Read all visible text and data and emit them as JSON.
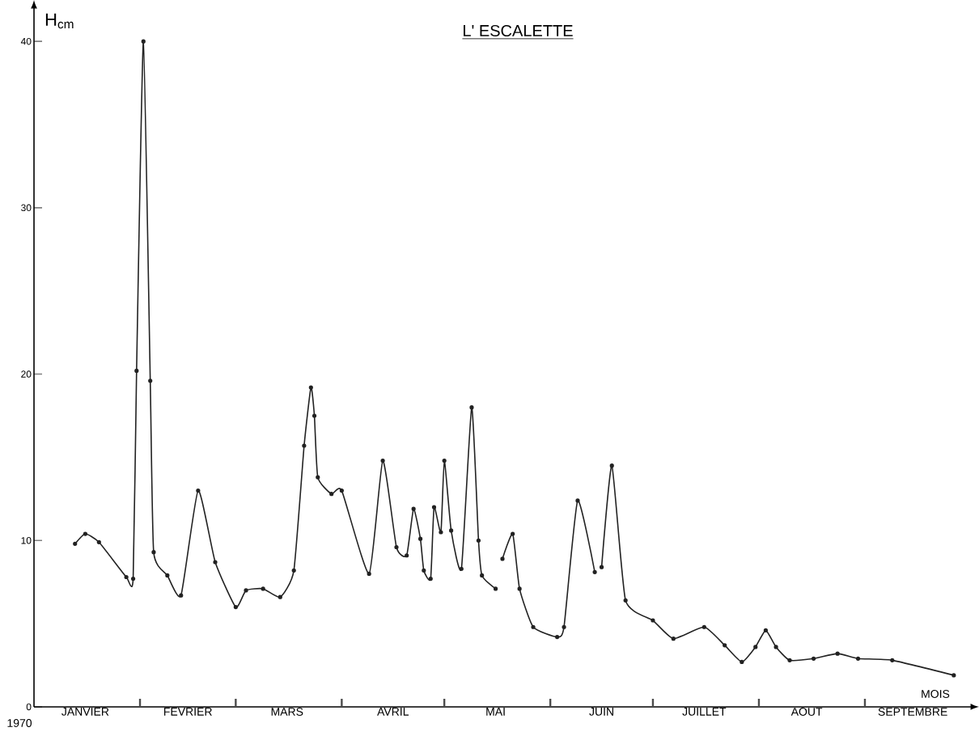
{
  "chart_data": {
    "type": "line",
    "title": "L' ESCALETTE",
    "ylabel": "H$_{cm}$",
    "xlabel": "MOIS",
    "annotations": [
      "1970"
    ],
    "x": [
      "1970-01-13",
      "1970-01-16",
      "1970-01-20",
      "1970-01-28",
      "1970-01-30",
      "1970-01-31",
      "1970-02-02",
      "1970-02-04",
      "1970-02-05",
      "1970-02-09",
      "1970-02-13",
      "1970-02-18",
      "1970-02-23",
      "1970-03-01",
      "1970-03-04",
      "1970-03-09",
      "1970-03-14",
      "1970-03-18",
      "1970-03-21",
      "1970-03-23",
      "1970-03-24",
      "1970-03-25",
      "1970-03-29",
      "1970-04-01",
      "1970-04-09",
      "1970-04-13",
      "1970-04-17",
      "1970-04-20",
      "1970-04-22",
      "1970-04-24",
      "1970-04-25",
      "1970-04-27",
      "1970-04-28",
      "1970-04-30",
      "1970-05-01",
      "1970-05-03",
      "1970-05-06",
      "1970-05-09",
      "1970-05-11",
      "1970-05-12",
      "1970-05-16",
      "1970-05-17",
      "1970-05-18",
      "1970-05-21",
      "1970-05-23",
      "1970-05-27",
      "1970-06-03",
      "1970-06-05",
      "1970-06-09",
      "1970-06-14",
      "1970-06-15",
      "1970-06-16",
      "1970-06-19",
      "1970-06-23",
      "1970-07-01",
      "1970-07-07",
      "1970-07-16",
      "1970-07-22",
      "1970-07-27",
      "1970-07-31",
      "1970-08-03",
      "1970-08-06",
      "1970-08-10",
      "1970-08-17",
      "1970-08-24",
      "1970-08-30",
      "1970-09-09",
      "1970-09-27"
    ],
    "values": [
      9.8,
      10.4,
      9.9,
      7.8,
      7.7,
      20.2,
      40.0,
      19.6,
      9.3,
      7.9,
      6.7,
      13.0,
      8.7,
      6.0,
      7.0,
      7.1,
      6.6,
      8.2,
      15.7,
      19.2,
      17.5,
      13.8,
      12.8,
      13.0,
      8.0,
      14.8,
      9.6,
      9.1,
      11.9,
      10.1,
      8.2,
      7.7,
      12.0,
      10.5,
      14.8,
      10.6,
      8.3,
      18.0,
      10.0,
      7.9,
      7.1,
      null,
      8.9,
      10.4,
      7.1,
      4.8,
      4.2,
      4.8,
      12.4,
      8.1,
      null,
      8.4,
      14.5,
      6.4,
      5.2,
      4.1,
      4.8,
      3.7,
      2.7,
      3.6,
      4.6,
      3.6,
      2.8,
      2.9,
      3.2,
      2.9,
      2.8,
      1.9
    ],
    "color": "#222222",
    "marker": "circle",
    "line_style": "solid",
    "xlim": [
      "1970-01-01",
      "1970-10-02"
    ],
    "ylim": [
      0,
      42
    ],
    "xticks": [
      {
        "value": "1970-01-16",
        "label": "JANVIER"
      },
      {
        "value": "1970-02-01",
        "label": null
      },
      {
        "value": "1970-02-15",
        "label": "FEVRIER"
      },
      {
        "value": "1970-03-01",
        "label": null
      },
      {
        "value": "1970-03-16",
        "label": "MARS"
      },
      {
        "value": "1970-04-01",
        "label": null
      },
      {
        "value": "1970-04-16",
        "label": "AVRIL"
      },
      {
        "value": "1970-05-01",
        "label": null
      },
      {
        "value": "1970-05-16",
        "label": "MAI"
      },
      {
        "value": "1970-06-01",
        "label": null
      },
      {
        "value": "1970-06-16",
        "label": "JUIN"
      },
      {
        "value": "1970-07-01",
        "label": null
      },
      {
        "value": "1970-07-16",
        "label": "JUILLET"
      },
      {
        "value": "1970-08-01",
        "label": null
      },
      {
        "value": "1970-08-15",
        "label": "AOUT"
      },
      {
        "value": "1970-09-01",
        "label": null
      },
      {
        "value": "1970-09-15",
        "label": "SEPTEMBRE"
      }
    ],
    "yticks": [
      0,
      10,
      20,
      30,
      40
    ],
    "grid": false
  }
}
